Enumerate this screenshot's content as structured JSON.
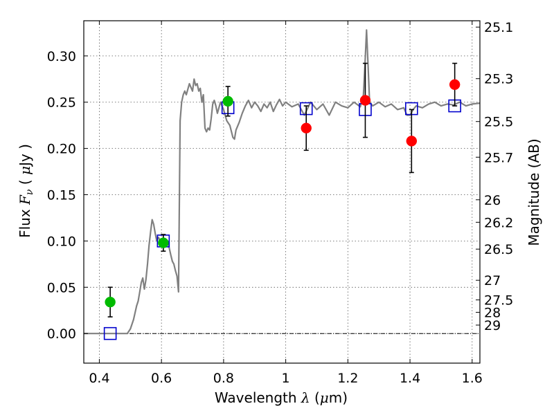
{
  "chart_data": {
    "type": "scatter",
    "xlabel": {
      "prefix": "Wavelength  ",
      "symbol": "λ",
      "unit_open": " (",
      "unit_mu": "μ",
      "unit_rest": "m)"
    },
    "ylabel": {
      "prefix": "Flux  ",
      "symbol": "F",
      "sub": "ν",
      "unit_open": "  ( ",
      "unit_mu": "μ",
      "unit_rest": "Jy )"
    },
    "y2label": "Magnitude (AB)",
    "xlim": [
      0.35,
      1.625
    ],
    "ylim": [
      -0.032,
      0.338
    ],
    "x_ticks": [
      0.4,
      0.6,
      0.8,
      1.0,
      1.2,
      1.4,
      1.6
    ],
    "x_tick_labels": [
      "0.4",
      "0.6",
      "0.8",
      "1",
      "1.2",
      "1.4",
      "1.6"
    ],
    "y_ticks": [
      0.0,
      0.05,
      0.1,
      0.15,
      0.2,
      0.25,
      0.3
    ],
    "y_tick_labels": [
      "0.00",
      "0.05",
      "0.10",
      "0.15",
      "0.20",
      "0.25",
      "0.30"
    ],
    "mag_ticks": [
      25.1,
      25.3,
      25.5,
      25.7,
      26,
      26.2,
      26.5,
      27,
      27.5,
      28,
      29
    ],
    "mag_tick_labels": [
      "25.1",
      "25.3",
      "25.5",
      "25.7",
      "26",
      "26.2",
      "26.5",
      "27",
      "27.5",
      "28",
      "29"
    ],
    "grid": true,
    "zero_line": true,
    "series": [
      {
        "kind": "model_spectrum",
        "color": "#808080",
        "x": [
          0.35,
          0.49,
          0.5,
          0.51,
          0.52,
          0.525,
          0.53,
          0.535,
          0.54,
          0.545,
          0.55,
          0.555,
          0.56,
          0.565,
          0.57,
          0.575,
          0.58,
          0.585,
          0.59,
          0.6,
          0.61,
          0.62,
          0.63,
          0.635,
          0.64,
          0.645,
          0.65,
          0.655,
          0.66,
          0.665,
          0.67,
          0.675,
          0.68,
          0.69,
          0.7,
          0.705,
          0.71,
          0.715,
          0.72,
          0.725,
          0.73,
          0.735,
          0.74,
          0.745,
          0.75,
          0.755,
          0.76,
          0.765,
          0.77,
          0.775,
          0.78,
          0.79,
          0.8,
          0.81,
          0.82,
          0.83,
          0.835,
          0.84,
          0.85,
          0.86,
          0.87,
          0.88,
          0.89,
          0.9,
          0.91,
          0.92,
          0.93,
          0.94,
          0.95,
          0.96,
          0.97,
          0.98,
          0.99,
          1.0,
          1.02,
          1.04,
          1.06,
          1.08,
          1.1,
          1.12,
          1.14,
          1.16,
          1.18,
          1.2,
          1.22,
          1.24,
          1.25,
          1.255,
          1.26,
          1.265,
          1.27,
          1.28,
          1.3,
          1.32,
          1.34,
          1.36,
          1.38,
          1.39,
          1.4,
          1.41,
          1.42,
          1.44,
          1.46,
          1.48,
          1.5,
          1.52,
          1.54,
          1.56,
          1.58,
          1.6,
          1.625
        ],
        "y": [
          0.0,
          0.0,
          0.005,
          0.015,
          0.03,
          0.035,
          0.045,
          0.055,
          0.06,
          0.048,
          0.058,
          0.075,
          0.095,
          0.11,
          0.123,
          0.118,
          0.108,
          0.1,
          0.104,
          0.098,
          0.094,
          0.1,
          0.085,
          0.078,
          0.075,
          0.068,
          0.062,
          0.045,
          0.23,
          0.25,
          0.258,
          0.262,
          0.258,
          0.27,
          0.262,
          0.275,
          0.268,
          0.27,
          0.262,
          0.265,
          0.25,
          0.258,
          0.222,
          0.218,
          0.222,
          0.22,
          0.232,
          0.248,
          0.252,
          0.246,
          0.238,
          0.25,
          0.242,
          0.23,
          0.225,
          0.212,
          0.21,
          0.22,
          0.228,
          0.238,
          0.246,
          0.252,
          0.244,
          0.25,
          0.246,
          0.24,
          0.248,
          0.244,
          0.25,
          0.24,
          0.247,
          0.253,
          0.246,
          0.25,
          0.245,
          0.248,
          0.236,
          0.25,
          0.242,
          0.248,
          0.236,
          0.25,
          0.246,
          0.244,
          0.25,
          0.245,
          0.258,
          0.29,
          0.328,
          0.29,
          0.25,
          0.246,
          0.25,
          0.245,
          0.248,
          0.242,
          0.244,
          0.236,
          0.236,
          0.242,
          0.246,
          0.244,
          0.248,
          0.25,
          0.246,
          0.248,
          0.247,
          0.25,
          0.246,
          0.248,
          0.249
        ]
      },
      {
        "kind": "model_photometry",
        "marker": "square",
        "color": "#0000cc",
        "points": [
          {
            "x": 0.435,
            "y": 0.0
          },
          {
            "x": 0.606,
            "y": 0.1
          },
          {
            "x": 0.814,
            "y": 0.244
          },
          {
            "x": 1.066,
            "y": 0.243
          },
          {
            "x": 1.256,
            "y": 0.242
          },
          {
            "x": 1.405,
            "y": 0.243
          },
          {
            "x": 1.544,
            "y": 0.246
          }
        ]
      },
      {
        "kind": "observed_optical",
        "marker": "circle",
        "color": "#00bb00",
        "points": [
          {
            "x": 0.435,
            "y": 0.034,
            "err": 0.016
          },
          {
            "x": 0.606,
            "y": 0.098,
            "err": 0.009
          },
          {
            "x": 0.814,
            "y": 0.251,
            "err": 0.016
          }
        ]
      },
      {
        "kind": "observed_nir",
        "marker": "circle",
        "color": "#ff0000",
        "points": [
          {
            "x": 1.066,
            "y": 0.222,
            "err": 0.024
          },
          {
            "x": 1.256,
            "y": 0.252,
            "err": 0.04
          },
          {
            "x": 1.405,
            "y": 0.208,
            "err": 0.034
          },
          {
            "x": 1.544,
            "y": 0.269,
            "err": 0.023
          }
        ]
      }
    ]
  }
}
